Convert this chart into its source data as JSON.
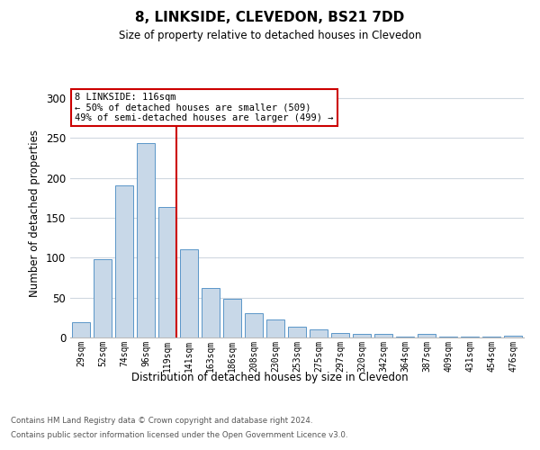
{
  "title1": "8, LINKSIDE, CLEVEDON, BS21 7DD",
  "title2": "Size of property relative to detached houses in Clevedon",
  "xlabel": "Distribution of detached houses by size in Clevedon",
  "ylabel": "Number of detached properties",
  "categories": [
    "29sqm",
    "52sqm",
    "74sqm",
    "96sqm",
    "119sqm",
    "141sqm",
    "163sqm",
    "186sqm",
    "208sqm",
    "230sqm",
    "253sqm",
    "275sqm",
    "297sqm",
    "320sqm",
    "342sqm",
    "364sqm",
    "387sqm",
    "409sqm",
    "431sqm",
    "454sqm",
    "476sqm"
  ],
  "values": [
    19,
    98,
    190,
    243,
    163,
    110,
    62,
    48,
    31,
    22,
    13,
    10,
    6,
    4,
    4,
    1,
    4,
    1,
    1,
    1,
    2
  ],
  "bar_color": "#c8d8e8",
  "bar_edge_color": "#5a96c8",
  "highlight_index": 4,
  "highlight_line_color": "#cc0000",
  "annotation_text": "8 LINKSIDE: 116sqm\n← 50% of detached houses are smaller (509)\n49% of semi-detached houses are larger (499) →",
  "annotation_box_color": "#ffffff",
  "annotation_box_edge_color": "#cc0000",
  "ylim": [
    0,
    310
  ],
  "yticks": [
    0,
    50,
    100,
    150,
    200,
    250,
    300
  ],
  "footer1": "Contains HM Land Registry data © Crown copyright and database right 2024.",
  "footer2": "Contains public sector information licensed under the Open Government Licence v3.0.",
  "bg_color": "#ffffff",
  "grid_color": "#d0d8e0"
}
